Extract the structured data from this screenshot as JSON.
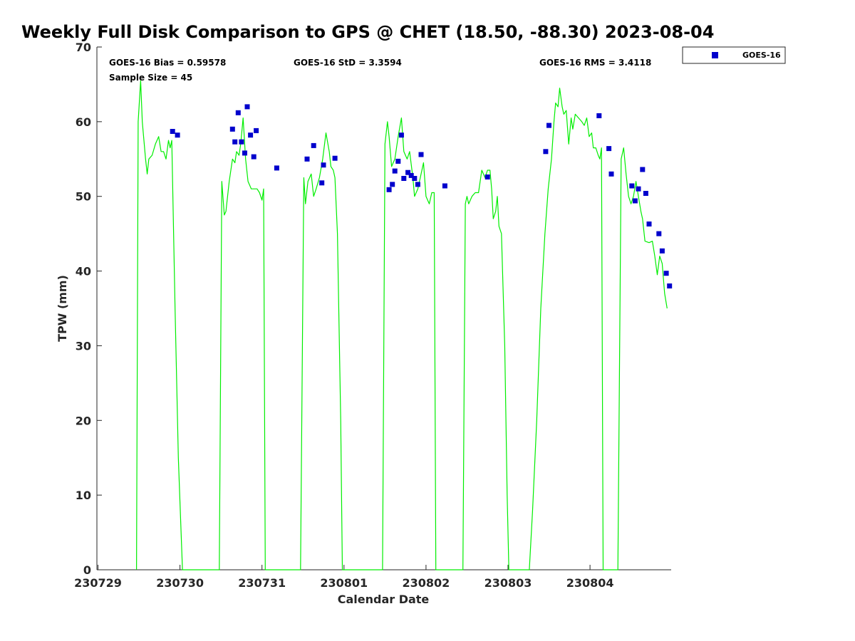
{
  "chart_data": {
    "type": "scatter",
    "title": "Weekly Full Disk Comparison to GPS @ CHET (18.50, -88.30) 2023-08-04",
    "xlabel": "Calendar Date",
    "ylabel": "TPW (mm)",
    "xlim": [
      "230729",
      "230805"
    ],
    "ylim": [
      0,
      70
    ],
    "x_ticks": [
      "230729",
      "230730",
      "230731",
      "230801",
      "230802",
      "230803",
      "230804"
    ],
    "y_ticks": [
      0,
      10,
      20,
      30,
      40,
      50,
      60,
      70
    ],
    "grid": false,
    "legend_position": "top-right",
    "stats": {
      "bias": "GOES-16 Bias = 0.59578",
      "std": "GOES-16 StD = 3.3594",
      "rms": "GOES-16 RMS = 3.4118",
      "sample_size": "Sample Size = 45"
    },
    "gps_line": {
      "color": "#00ee00",
      "points": [
        [
          0.47,
          0
        ],
        [
          0.49,
          60
        ],
        [
          0.52,
          65.5
        ],
        [
          0.54,
          60
        ],
        [
          0.58,
          55
        ],
        [
          0.6,
          53
        ],
        [
          0.62,
          55
        ],
        [
          0.66,
          55.5
        ],
        [
          0.7,
          57
        ],
        [
          0.74,
          58
        ],
        [
          0.77,
          56
        ],
        [
          0.8,
          56
        ],
        [
          0.83,
          55
        ],
        [
          0.86,
          57.5
        ],
        [
          0.88,
          56.5
        ],
        [
          0.9,
          57.5
        ],
        [
          0.94,
          35
        ],
        [
          0.98,
          15
        ],
        [
          1.03,
          0
        ],
        [
          1.48,
          0
        ],
        [
          1.51,
          52
        ],
        [
          1.54,
          47.5
        ],
        [
          1.56,
          48
        ],
        [
          1.6,
          52
        ],
        [
          1.64,
          55
        ],
        [
          1.67,
          54.5
        ],
        [
          1.69,
          56
        ],
        [
          1.72,
          55.5
        ],
        [
          1.74,
          57
        ],
        [
          1.77,
          60.5
        ],
        [
          1.8,
          55
        ],
        [
          1.83,
          52
        ],
        [
          1.87,
          51
        ],
        [
          1.91,
          51
        ],
        [
          1.94,
          51
        ],
        [
          1.97,
          50.5
        ],
        [
          2.0,
          49.5
        ],
        [
          2.02,
          51
        ],
        [
          2.04,
          0
        ],
        [
          2.47,
          0
        ],
        [
          2.51,
          52.5
        ],
        [
          2.53,
          49
        ],
        [
          2.56,
          52
        ],
        [
          2.6,
          53
        ],
        [
          2.63,
          50
        ],
        [
          2.66,
          51
        ],
        [
          2.7,
          52.5
        ],
        [
          2.74,
          55
        ],
        [
          2.78,
          58.5
        ],
        [
          2.82,
          56
        ],
        [
          2.84,
          54
        ],
        [
          2.87,
          53.5
        ],
        [
          2.89,
          52.5
        ],
        [
          2.92,
          45
        ],
        [
          2.96,
          20
        ],
        [
          2.98,
          0
        ],
        [
          3.47,
          0
        ],
        [
          3.5,
          57
        ],
        [
          3.53,
          60
        ],
        [
          3.55,
          58
        ],
        [
          3.58,
          54
        ],
        [
          3.62,
          55
        ],
        [
          3.66,
          58
        ],
        [
          3.7,
          60.5
        ],
        [
          3.73,
          56
        ],
        [
          3.77,
          55
        ],
        [
          3.8,
          56
        ],
        [
          3.84,
          52.5
        ],
        [
          3.86,
          50
        ],
        [
          3.9,
          51
        ],
        [
          3.94,
          53
        ],
        [
          3.97,
          54.5
        ],
        [
          4.0,
          50
        ],
        [
          4.04,
          49
        ],
        [
          4.07,
          50.5
        ],
        [
          4.1,
          50.5
        ],
        [
          4.12,
          0
        ],
        [
          4.45,
          0
        ],
        [
          4.48,
          49
        ],
        [
          4.5,
          50
        ],
        [
          4.52,
          49
        ],
        [
          4.56,
          50
        ],
        [
          4.6,
          50.5
        ],
        [
          4.64,
          50.5
        ],
        [
          4.68,
          53.5
        ],
        [
          4.72,
          52.5
        ],
        [
          4.75,
          53.5
        ],
        [
          4.78,
          53.5
        ],
        [
          4.8,
          51
        ],
        [
          4.82,
          47
        ],
        [
          4.85,
          48
        ],
        [
          4.87,
          50
        ],
        [
          4.89,
          46
        ],
        [
          4.92,
          45
        ],
        [
          4.96,
          30
        ],
        [
          4.99,
          10
        ],
        [
          5.01,
          0
        ],
        [
          5.26,
          0
        ],
        [
          5.3,
          8
        ],
        [
          5.35,
          20
        ],
        [
          5.4,
          35
        ],
        [
          5.45,
          45
        ],
        [
          5.49,
          51
        ],
        [
          5.53,
          55
        ],
        [
          5.56,
          60
        ],
        [
          5.58,
          62.5
        ],
        [
          5.61,
          62
        ],
        [
          5.63,
          64.5
        ],
        [
          5.66,
          62
        ],
        [
          5.68,
          61
        ],
        [
          5.71,
          61.5
        ],
        [
          5.74,
          57
        ],
        [
          5.77,
          60.5
        ],
        [
          5.79,
          59
        ],
        [
          5.82,
          61
        ],
        [
          5.86,
          60.5
        ],
        [
          5.9,
          60
        ],
        [
          5.93,
          59.5
        ],
        [
          5.96,
          60.5
        ],
        [
          5.99,
          58
        ],
        [
          6.02,
          58.5
        ],
        [
          6.04,
          56.5
        ],
        [
          6.07,
          56.5
        ],
        [
          6.1,
          55.5
        ],
        [
          6.12,
          55
        ],
        [
          6.14,
          56.5
        ],
        [
          6.16,
          0
        ],
        [
          6.34,
          0
        ],
        [
          6.38,
          55
        ],
        [
          6.41,
          56.5
        ],
        [
          6.44,
          53
        ],
        [
          6.47,
          50
        ],
        [
          6.5,
          49
        ],
        [
          6.53,
          50
        ],
        [
          6.56,
          52
        ],
        [
          6.59,
          50
        ],
        [
          6.62,
          48
        ],
        [
          6.64,
          47
        ],
        [
          6.67,
          44
        ],
        [
          6.72,
          43.8
        ],
        [
          6.76,
          44
        ],
        [
          6.79,
          42
        ],
        [
          6.82,
          39.5
        ],
        [
          6.85,
          42
        ],
        [
          6.88,
          41
        ],
        [
          6.91,
          37
        ],
        [
          6.94,
          35
        ]
      ]
    },
    "series": [
      {
        "name": "GOES-16",
        "color": "#0000cc",
        "points": [
          [
            0.91,
            58.7
          ],
          [
            0.97,
            58.2
          ],
          [
            1.64,
            59.0
          ],
          [
            1.67,
            57.3
          ],
          [
            1.71,
            61.2
          ],
          [
            1.75,
            57.3
          ],
          [
            1.79,
            55.8
          ],
          [
            1.82,
            62.0
          ],
          [
            1.86,
            58.2
          ],
          [
            1.9,
            55.3
          ],
          [
            1.93,
            58.8
          ],
          [
            2.18,
            53.8
          ],
          [
            2.55,
            55.0
          ],
          [
            2.63,
            56.8
          ],
          [
            2.73,
            51.8
          ],
          [
            2.75,
            54.2
          ],
          [
            2.89,
            55.1
          ],
          [
            3.55,
            50.9
          ],
          [
            3.59,
            51.6
          ],
          [
            3.62,
            53.4
          ],
          [
            3.66,
            54.7
          ],
          [
            3.7,
            58.2
          ],
          [
            3.73,
            52.4
          ],
          [
            3.78,
            53.2
          ],
          [
            3.82,
            52.8
          ],
          [
            3.86,
            52.4
          ],
          [
            3.9,
            51.6
          ],
          [
            3.94,
            55.6
          ],
          [
            4.23,
            51.4
          ],
          [
            4.75,
            52.6
          ],
          [
            5.46,
            56.0
          ],
          [
            5.5,
            59.5
          ],
          [
            6.11,
            60.8
          ],
          [
            6.23,
            56.4
          ],
          [
            6.26,
            53.0
          ],
          [
            6.51,
            51.4
          ],
          [
            6.55,
            49.4
          ],
          [
            6.59,
            51.0
          ],
          [
            6.64,
            53.6
          ],
          [
            6.68,
            50.4
          ],
          [
            6.72,
            46.3
          ],
          [
            6.84,
            45.0
          ],
          [
            6.88,
            42.7
          ],
          [
            6.93,
            39.7
          ],
          [
            6.97,
            38.0
          ]
        ]
      }
    ]
  }
}
